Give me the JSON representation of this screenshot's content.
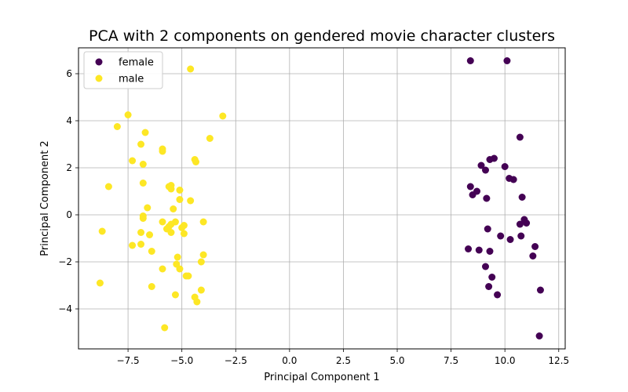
{
  "chart_data": {
    "type": "scatter",
    "title": "PCA with 2 components on gendered movie character clusters",
    "xlabel": "Principal Component 1",
    "ylabel": "Principal Component 2",
    "xlim": [
      -9.8,
      12.8
    ],
    "ylim": [
      -5.7,
      7.1
    ],
    "xticks": [
      -7.5,
      -5.0,
      -2.5,
      0.0,
      2.5,
      5.0,
      7.5,
      10.0,
      12.5
    ],
    "xtick_labels": [
      "−7.5",
      "−5.0",
      "−2.5",
      "0.0",
      "2.5",
      "5.0",
      "7.5",
      "10.0",
      "12.5"
    ],
    "yticks": [
      -4,
      -2,
      0,
      2,
      4,
      6
    ],
    "ytick_labels": [
      "−4",
      "−2",
      "0",
      "2",
      "4",
      "6"
    ],
    "grid": true,
    "legend_position": "top-left",
    "series": [
      {
        "name": "female",
        "color": "#440154",
        "points": [
          [
            8.4,
            6.55
          ],
          [
            10.1,
            6.55
          ],
          [
            10.7,
            3.3
          ],
          [
            9.3,
            2.35
          ],
          [
            9.5,
            2.4
          ],
          [
            8.9,
            2.1
          ],
          [
            9.1,
            1.9
          ],
          [
            10.0,
            2.05
          ],
          [
            10.2,
            1.55
          ],
          [
            10.4,
            1.5
          ],
          [
            8.4,
            1.2
          ],
          [
            8.7,
            1.0
          ],
          [
            8.5,
            0.85
          ],
          [
            9.15,
            0.7
          ],
          [
            10.8,
            0.75
          ],
          [
            10.9,
            -0.2
          ],
          [
            11.0,
            -0.35
          ],
          [
            10.7,
            -0.4
          ],
          [
            9.2,
            -0.6
          ],
          [
            9.8,
            -0.9
          ],
          [
            10.75,
            -0.9
          ],
          [
            10.25,
            -1.05
          ],
          [
            11.4,
            -1.35
          ],
          [
            8.3,
            -1.45
          ],
          [
            8.8,
            -1.5
          ],
          [
            9.3,
            -1.55
          ],
          [
            11.3,
            -1.75
          ],
          [
            9.1,
            -2.2
          ],
          [
            9.4,
            -2.65
          ],
          [
            9.25,
            -3.05
          ],
          [
            11.65,
            -3.2
          ],
          [
            9.65,
            -3.4
          ],
          [
            11.6,
            -5.15
          ]
        ]
      },
      {
        "name": "male",
        "color": "#fde725",
        "points": [
          [
            -4.6,
            6.2
          ],
          [
            -7.5,
            4.25
          ],
          [
            -3.1,
            4.2
          ],
          [
            -8.0,
            3.75
          ],
          [
            -6.7,
            3.5
          ],
          [
            -3.7,
            3.25
          ],
          [
            -6.9,
            3.0
          ],
          [
            -5.9,
            2.8
          ],
          [
            -5.9,
            2.7
          ],
          [
            -4.4,
            2.35
          ],
          [
            -4.35,
            2.25
          ],
          [
            -7.3,
            2.3
          ],
          [
            -6.8,
            2.15
          ],
          [
            -8.4,
            1.2
          ],
          [
            -6.8,
            1.35
          ],
          [
            -5.5,
            1.25
          ],
          [
            -5.6,
            1.2
          ],
          [
            -5.5,
            1.1
          ],
          [
            -5.1,
            1.05
          ],
          [
            -5.1,
            0.65
          ],
          [
            -4.6,
            0.6
          ],
          [
            -6.6,
            0.3
          ],
          [
            -5.4,
            0.25
          ],
          [
            -6.8,
            -0.05
          ],
          [
            -6.8,
            -0.15
          ],
          [
            -5.9,
            -0.3
          ],
          [
            -5.3,
            -0.3
          ],
          [
            -5.5,
            -0.4
          ],
          [
            -4.0,
            -0.3
          ],
          [
            -4.9,
            -0.45
          ],
          [
            -5.6,
            -0.5
          ],
          [
            -5.0,
            -0.55
          ],
          [
            -5.7,
            -0.6
          ],
          [
            -8.7,
            -0.7
          ],
          [
            -6.9,
            -0.75
          ],
          [
            -5.5,
            -0.75
          ],
          [
            -4.9,
            -0.8
          ],
          [
            -6.5,
            -0.85
          ],
          [
            -6.9,
            -1.25
          ],
          [
            -7.3,
            -1.3
          ],
          [
            -6.4,
            -1.55
          ],
          [
            -4.0,
            -1.7
          ],
          [
            -5.2,
            -1.8
          ],
          [
            -4.1,
            -2.0
          ],
          [
            -5.25,
            -2.1
          ],
          [
            -5.1,
            -2.3
          ],
          [
            -5.9,
            -2.3
          ],
          [
            -4.8,
            -2.6
          ],
          [
            -4.7,
            -2.6
          ],
          [
            -8.8,
            -2.9
          ],
          [
            -6.4,
            -3.05
          ],
          [
            -4.1,
            -3.2
          ],
          [
            -5.3,
            -3.4
          ],
          [
            -4.4,
            -3.5
          ],
          [
            -4.3,
            -3.7
          ],
          [
            -5.8,
            -4.8
          ]
        ]
      }
    ]
  }
}
